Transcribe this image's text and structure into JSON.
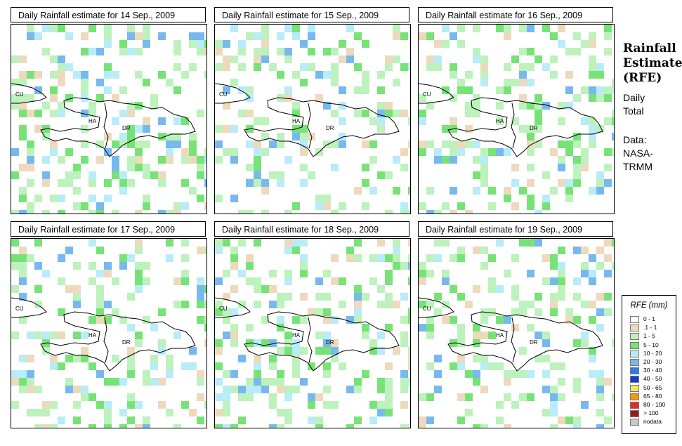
{
  "panels": [
    {
      "title": "Daily Rainfall estimate for  14 Sep., 2009"
    },
    {
      "title": "Daily Rainfall estimate for  15 Sep., 2009"
    },
    {
      "title": "Daily Rainfall estimate for  16 Sep., 2009"
    },
    {
      "title": "Daily Rainfall estimate for  17 Sep., 2009"
    },
    {
      "title": "Daily Rainfall estimate for  18 Sep., 2009"
    },
    {
      "title": "Daily Rainfall estimate for  19 Sep., 2009"
    }
  ],
  "map_labels": {
    "cuba": "CU",
    "haiti": "HA",
    "dominican_republic": "DR"
  },
  "sidebar": {
    "title_line1": "Rainfall",
    "title_line2": "Estimate",
    "title_line3": "(RFE)",
    "period_line1": "Daily",
    "period_line2": "Total",
    "source_line1": "Data:",
    "source_line2": "NASA-",
    "source_line3": "TRMM"
  },
  "legend": {
    "title": "RFE (mm)",
    "classes": [
      {
        "label": "0 - 1",
        "color": "#ffffff"
      },
      {
        "label": ".1 - 1",
        "color": "#eed9bd"
      },
      {
        "label": "1 - 5",
        "color": "#bdf2bd"
      },
      {
        "label": "5 - 10",
        "color": "#77e377"
      },
      {
        "label": "10 - 20",
        "color": "#b8ecf8"
      },
      {
        "label": "20 - 30",
        "color": "#77b9ef"
      },
      {
        "label": "30 - 40",
        "color": "#2e7be6"
      },
      {
        "label": "40 - 50",
        "color": "#1c3bc8"
      },
      {
        "label": "50 - 65",
        "color": "#f7e460"
      },
      {
        "label": "65 - 80",
        "color": "#f39a14"
      },
      {
        "label": "80 - 100",
        "color": "#e0301e"
      },
      {
        "label": "> 100",
        "color": "#9a1a1a"
      },
      {
        "label": "nodata",
        "color": "#c8c8c8"
      }
    ]
  },
  "colors": {
    "border": "#000000",
    "background": "#ffffff",
    "coastline": "#000000"
  }
}
